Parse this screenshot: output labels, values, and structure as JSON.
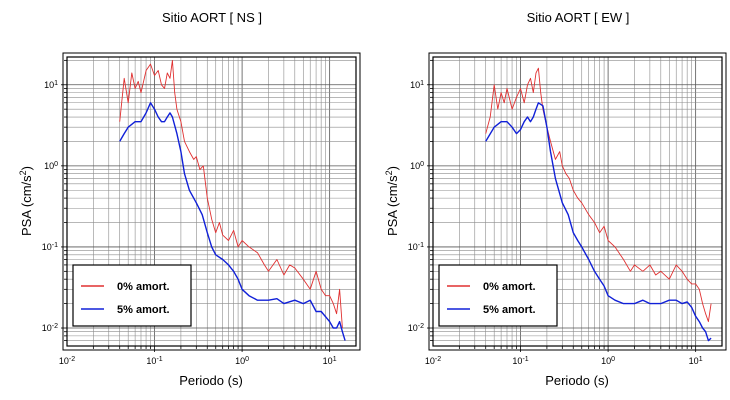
{
  "chart_data": [
    {
      "type": "line",
      "title": "Sitio AORT [ NS ]",
      "xlabel": "Periodo (s)",
      "ylabel": "PSA (cm/s²)",
      "x_scale": "log",
      "y_scale": "log",
      "xlim": [
        0.01,
        20
      ],
      "ylim": [
        0.006,
        22
      ],
      "grid": true,
      "legend_position": "bottom-left",
      "x_ticks": [
        {
          "value": 0.01,
          "base": "10",
          "exp": "-2"
        },
        {
          "value": 0.1,
          "base": "10",
          "exp": "-1"
        },
        {
          "value": 1,
          "base": "10",
          "exp": "0"
        },
        {
          "value": 10,
          "base": "10",
          "exp": "1"
        }
      ],
      "y_ticks": [
        {
          "value": 0.01,
          "base": "10",
          "exp": "-2"
        },
        {
          "value": 0.1,
          "base": "10",
          "exp": "-1"
        },
        {
          "value": 1,
          "base": "10",
          "exp": "0"
        },
        {
          "value": 10,
          "base": "10",
          "exp": "1"
        }
      ],
      "series": [
        {
          "name": "0% amort.",
          "color": "#e03030",
          "x": [
            0.04,
            0.045,
            0.05,
            0.055,
            0.06,
            0.065,
            0.07,
            0.08,
            0.09,
            0.1,
            0.11,
            0.12,
            0.13,
            0.14,
            0.15,
            0.16,
            0.17,
            0.18,
            0.2,
            0.22,
            0.25,
            0.28,
            0.3,
            0.33,
            0.36,
            0.4,
            0.45,
            0.5,
            0.55,
            0.6,
            0.7,
            0.8,
            0.9,
            1.0,
            1.2,
            1.5,
            1.8,
            2.0,
            2.5,
            3.0,
            3.5,
            4.0,
            5.0,
            6.0,
            7.0,
            8.0,
            9.0,
            10.0,
            11.0,
            12.0,
            13.0,
            14.0
          ],
          "y": [
            3.5,
            12.0,
            6.0,
            14.0,
            9.0,
            11.0,
            8.0,
            15.0,
            18.0,
            13.0,
            15.0,
            10.0,
            9.0,
            14.0,
            12.0,
            20.0,
            8.0,
            5.0,
            3.5,
            2.0,
            1.5,
            1.2,
            1.3,
            0.9,
            1.0,
            0.4,
            0.22,
            0.15,
            0.2,
            0.14,
            0.12,
            0.16,
            0.1,
            0.12,
            0.1,
            0.085,
            0.06,
            0.05,
            0.07,
            0.045,
            0.06,
            0.055,
            0.04,
            0.03,
            0.05,
            0.03,
            0.025,
            0.025,
            0.02,
            0.015,
            0.03,
            0.01
          ]
        },
        {
          "name": "5% amort.",
          "color": "#1020d8",
          "x": [
            0.04,
            0.045,
            0.05,
            0.06,
            0.07,
            0.08,
            0.09,
            0.1,
            0.11,
            0.12,
            0.13,
            0.14,
            0.15,
            0.16,
            0.18,
            0.2,
            0.22,
            0.25,
            0.3,
            0.35,
            0.4,
            0.45,
            0.5,
            0.6,
            0.7,
            0.8,
            0.9,
            1.0,
            1.2,
            1.5,
            2.0,
            2.5,
            3.0,
            4.0,
            5.0,
            6.0,
            7.0,
            8.0,
            10.0,
            11.0,
            12.0,
            13.0,
            14.0,
            15.0
          ],
          "y": [
            2.0,
            2.5,
            3.0,
            3.5,
            3.5,
            4.5,
            6.0,
            5.0,
            4.0,
            3.5,
            3.5,
            4.0,
            4.5,
            4.0,
            2.5,
            1.5,
            0.8,
            0.5,
            0.35,
            0.25,
            0.15,
            0.1,
            0.08,
            0.07,
            0.06,
            0.05,
            0.04,
            0.03,
            0.025,
            0.022,
            0.022,
            0.023,
            0.02,
            0.022,
            0.02,
            0.022,
            0.016,
            0.016,
            0.012,
            0.01,
            0.01,
            0.012,
            0.009,
            0.007
          ]
        }
      ]
    },
    {
      "type": "line",
      "title": "Sitio AORT [ EW ]",
      "xlabel": "Periodo (s)",
      "ylabel": "PSA (cm/s²)",
      "x_scale": "log",
      "y_scale": "log",
      "xlim": [
        0.01,
        20
      ],
      "ylim": [
        0.006,
        22
      ],
      "grid": true,
      "legend_position": "bottom-left",
      "x_ticks": [
        {
          "value": 0.01,
          "base": "10",
          "exp": "-2"
        },
        {
          "value": 0.1,
          "base": "10",
          "exp": "-1"
        },
        {
          "value": 1,
          "base": "10",
          "exp": "0"
        },
        {
          "value": 10,
          "base": "10",
          "exp": "1"
        }
      ],
      "y_ticks": [
        {
          "value": 0.01,
          "base": "10",
          "exp": "-2"
        },
        {
          "value": 0.1,
          "base": "10",
          "exp": "-1"
        },
        {
          "value": 1,
          "base": "10",
          "exp": "0"
        },
        {
          "value": 10,
          "base": "10",
          "exp": "1"
        }
      ],
      "series": [
        {
          "name": "0% amort.",
          "color": "#e03030",
          "x": [
            0.04,
            0.045,
            0.05,
            0.055,
            0.06,
            0.065,
            0.07,
            0.08,
            0.09,
            0.1,
            0.11,
            0.12,
            0.13,
            0.14,
            0.15,
            0.16,
            0.17,
            0.18,
            0.2,
            0.22,
            0.25,
            0.28,
            0.3,
            0.33,
            0.36,
            0.4,
            0.45,
            0.5,
            0.6,
            0.7,
            0.8,
            0.9,
            1.0,
            1.2,
            1.5,
            1.8,
            2.0,
            2.5,
            3.0,
            3.5,
            4.0,
            5.0,
            6.0,
            7.0,
            8.0,
            9.0,
            10.0,
            11.0,
            12.0,
            13.0,
            14.0,
            15.0
          ],
          "y": [
            2.5,
            4.0,
            10.0,
            5.0,
            8.0,
            6.0,
            9.0,
            5.0,
            7.0,
            9.0,
            6.0,
            10.0,
            12.0,
            8.0,
            14.0,
            16.0,
            8.0,
            5.0,
            3.0,
            2.0,
            1.2,
            1.5,
            1.0,
            0.8,
            0.7,
            0.5,
            0.4,
            0.35,
            0.25,
            0.2,
            0.15,
            0.18,
            0.12,
            0.1,
            0.07,
            0.05,
            0.06,
            0.05,
            0.06,
            0.045,
            0.05,
            0.04,
            0.06,
            0.05,
            0.04,
            0.035,
            0.035,
            0.03,
            0.02,
            0.015,
            0.012,
            0.02
          ]
        },
        {
          "name": "5% amort.",
          "color": "#1020d8",
          "x": [
            0.04,
            0.05,
            0.06,
            0.07,
            0.08,
            0.09,
            0.1,
            0.11,
            0.12,
            0.13,
            0.14,
            0.15,
            0.16,
            0.18,
            0.2,
            0.22,
            0.25,
            0.3,
            0.35,
            0.4,
            0.45,
            0.5,
            0.6,
            0.7,
            0.8,
            0.9,
            1.0,
            1.2,
            1.5,
            2.0,
            2.5,
            3.0,
            4.0,
            5.0,
            6.0,
            7.0,
            8.0,
            9.0,
            10.0,
            11.0,
            12.0,
            13.0,
            14.0,
            15.0
          ],
          "y": [
            2.0,
            3.0,
            3.5,
            3.5,
            3.0,
            2.5,
            2.8,
            3.5,
            4.0,
            3.5,
            4.0,
            5.0,
            6.0,
            5.5,
            3.0,
            1.5,
            0.7,
            0.35,
            0.25,
            0.15,
            0.12,
            0.1,
            0.07,
            0.05,
            0.04,
            0.033,
            0.025,
            0.022,
            0.02,
            0.02,
            0.022,
            0.02,
            0.02,
            0.022,
            0.022,
            0.02,
            0.021,
            0.018,
            0.014,
            0.012,
            0.01,
            0.009,
            0.007,
            0.0075
          ]
        }
      ]
    }
  ]
}
